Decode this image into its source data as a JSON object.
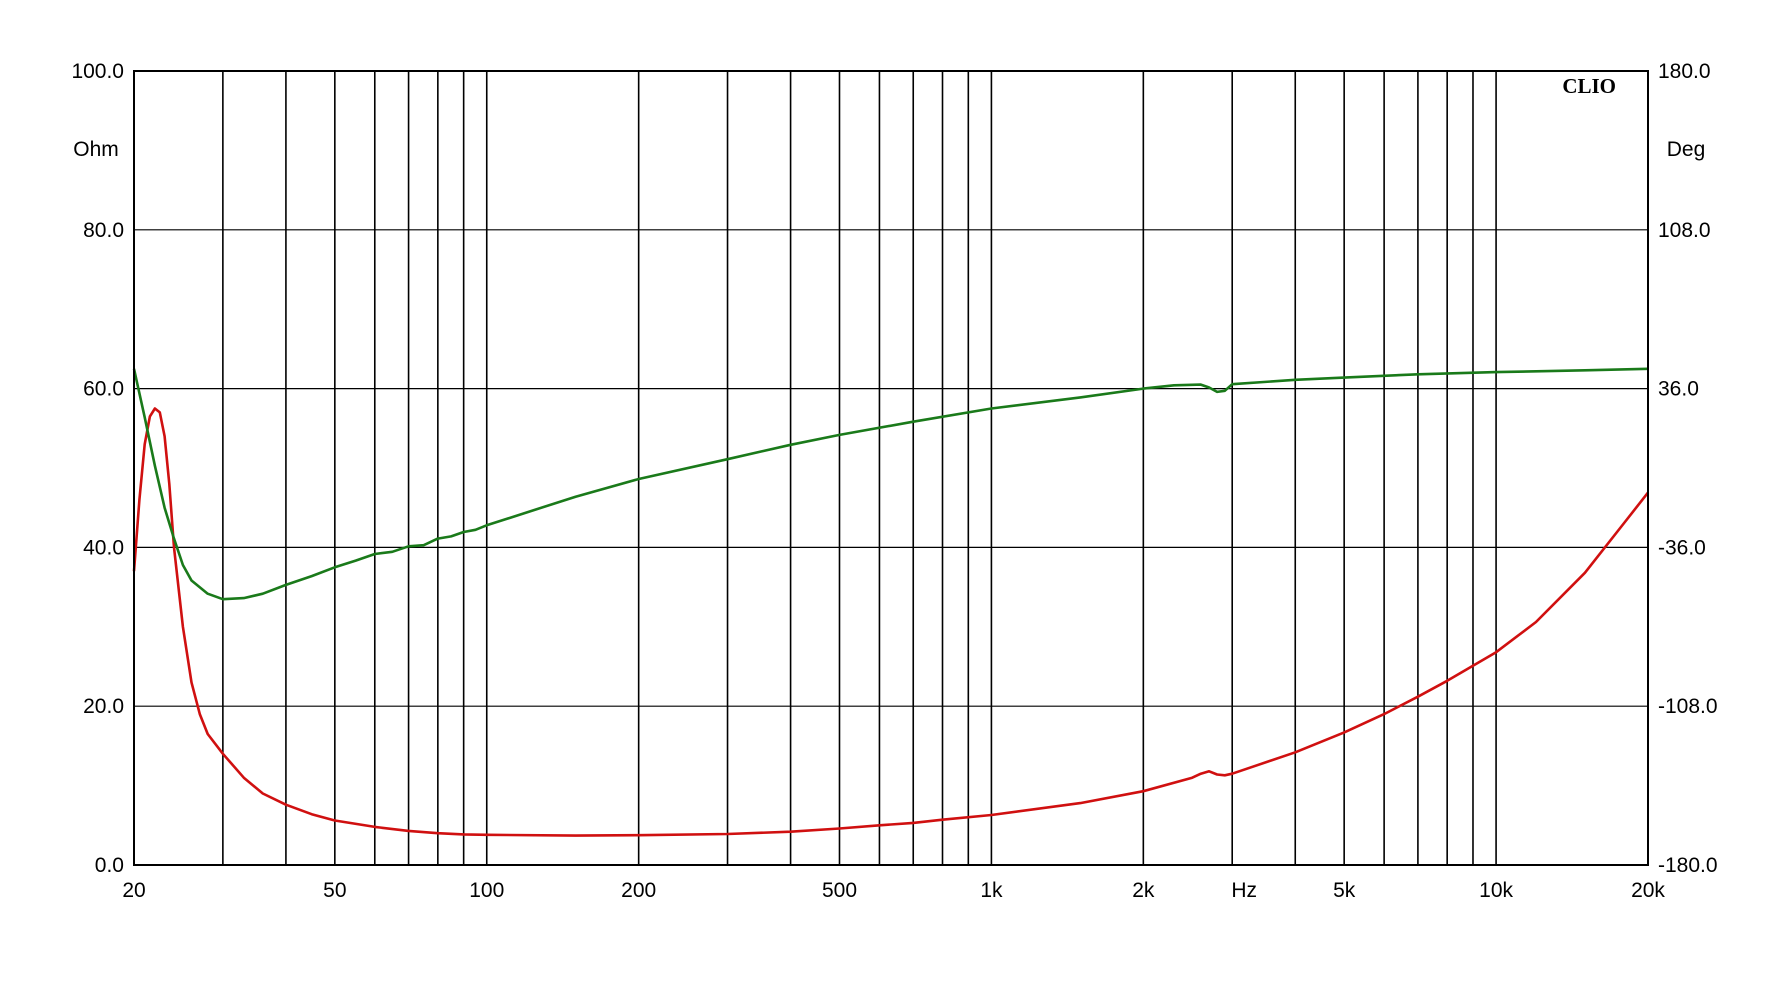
{
  "chart_data": {
    "type": "line",
    "brand": "CLIO",
    "x_scale": "log",
    "xlim": [
      20,
      20000
    ],
    "x_ticks": [
      {
        "value": 20,
        "label": "20"
      },
      {
        "value": 50,
        "label": "50"
      },
      {
        "value": 100,
        "label": "100"
      },
      {
        "value": 200,
        "label": "200"
      },
      {
        "value": 500,
        "label": "500"
      },
      {
        "value": 1000,
        "label": "1k"
      },
      {
        "value": 2000,
        "label": "2k"
      },
      {
        "value": 5000,
        "label": "5k"
      },
      {
        "value": 10000,
        "label": "10k"
      },
      {
        "value": 20000,
        "label": "20k"
      }
    ],
    "x_unit_label": {
      "value": 3000,
      "label": "Hz"
    },
    "x_gridlines": [
      20,
      30,
      40,
      50,
      60,
      70,
      80,
      90,
      100,
      200,
      300,
      400,
      500,
      600,
      700,
      800,
      900,
      1000,
      2000,
      3000,
      4000,
      5000,
      6000,
      7000,
      8000,
      9000,
      10000,
      20000
    ],
    "y_left": {
      "unit": "Ohm",
      "range": [
        0,
        100
      ],
      "ticks": [
        {
          "value": 0,
          "label": "0.0"
        },
        {
          "value": 20,
          "label": "20.0"
        },
        {
          "value": 40,
          "label": "40.0"
        },
        {
          "value": 60,
          "label": "60.0"
        },
        {
          "value": 80,
          "label": "80.0"
        },
        {
          "value": 100,
          "label": "100.0"
        }
      ]
    },
    "y_right": {
      "unit": "Deg",
      "range": [
        -180,
        180
      ],
      "ticks": [
        {
          "value": -180,
          "label": "-180.0"
        },
        {
          "value": -108,
          "label": "-108.0"
        },
        {
          "value": -36,
          "label": "-36.0"
        },
        {
          "value": 36,
          "label": "36.0"
        },
        {
          "value": 108,
          "label": "108.0"
        },
        {
          "value": 180,
          "label": "180.0"
        }
      ]
    },
    "grid": true,
    "series": [
      {
        "axis": "left",
        "color": "#d01010",
        "points": [
          [
            20,
            37
          ],
          [
            20.5,
            46
          ],
          [
            21,
            53
          ],
          [
            21.5,
            56.5
          ],
          [
            22,
            57.5
          ],
          [
            22.5,
            57
          ],
          [
            23,
            54
          ],
          [
            23.5,
            48
          ],
          [
            24,
            40
          ],
          [
            25,
            30
          ],
          [
            26,
            23
          ],
          [
            27,
            19
          ],
          [
            28,
            16.5
          ],
          [
            30,
            14
          ],
          [
            33,
            11
          ],
          [
            36,
            9
          ],
          [
            40,
            7.6
          ],
          [
            45,
            6.4
          ],
          [
            50,
            5.6
          ],
          [
            60,
            4.8
          ],
          [
            70,
            4.3
          ],
          [
            80,
            4.0
          ],
          [
            90,
            3.85
          ],
          [
            100,
            3.8
          ],
          [
            150,
            3.7
          ],
          [
            200,
            3.75
          ],
          [
            300,
            3.9
          ],
          [
            400,
            4.2
          ],
          [
            500,
            4.6
          ],
          [
            600,
            5.0
          ],
          [
            700,
            5.3
          ],
          [
            800,
            5.7
          ],
          [
            1000,
            6.3
          ],
          [
            1500,
            7.8
          ],
          [
            2000,
            9.3
          ],
          [
            2500,
            11.0
          ],
          [
            2600,
            11.5
          ],
          [
            2700,
            11.8
          ],
          [
            2800,
            11.4
          ],
          [
            2900,
            11.3
          ],
          [
            3000,
            11.5
          ],
          [
            4000,
            14.2
          ],
          [
            5000,
            16.7
          ],
          [
            6000,
            19.0
          ],
          [
            7000,
            21.2
          ],
          [
            8000,
            23.2
          ],
          [
            10000,
            26.8
          ],
          [
            12000,
            30.6
          ],
          [
            15000,
            36.8
          ],
          [
            18000,
            43.2
          ],
          [
            20000,
            46.9
          ]
        ]
      },
      {
        "axis": "right",
        "color": "#1a7a1a",
        "points": [
          [
            20,
            45
          ],
          [
            21,
            23
          ],
          [
            22,
            1
          ],
          [
            23,
            -18
          ],
          [
            24,
            -32
          ],
          [
            25,
            -44
          ],
          [
            26,
            -51
          ],
          [
            28,
            -57
          ],
          [
            30,
            -59.5
          ],
          [
            33,
            -59
          ],
          [
            36,
            -57
          ],
          [
            40,
            -53
          ],
          [
            45,
            -49
          ],
          [
            50,
            -45
          ],
          [
            55,
            -42
          ],
          [
            60,
            -39
          ],
          [
            65,
            -38
          ],
          [
            70,
            -35.5
          ],
          [
            75,
            -35
          ],
          [
            80,
            -32
          ],
          [
            85,
            -31
          ],
          [
            90,
            -29
          ],
          [
            95,
            -28
          ],
          [
            100,
            -26
          ],
          [
            150,
            -13
          ],
          [
            200,
            -5
          ],
          [
            300,
            4
          ],
          [
            400,
            10.5
          ],
          [
            500,
            15
          ],
          [
            700,
            21
          ],
          [
            1000,
            27
          ],
          [
            1500,
            32
          ],
          [
            2000,
            36
          ],
          [
            2300,
            37.5
          ],
          [
            2600,
            37.8
          ],
          [
            2700,
            36.5
          ],
          [
            2800,
            34.5
          ],
          [
            2900,
            35
          ],
          [
            3000,
            38
          ],
          [
            4000,
            40
          ],
          [
            5000,
            41
          ],
          [
            7000,
            42.5
          ],
          [
            10000,
            43.5
          ],
          [
            15000,
            44.3
          ],
          [
            20000,
            45
          ]
        ]
      }
    ]
  }
}
